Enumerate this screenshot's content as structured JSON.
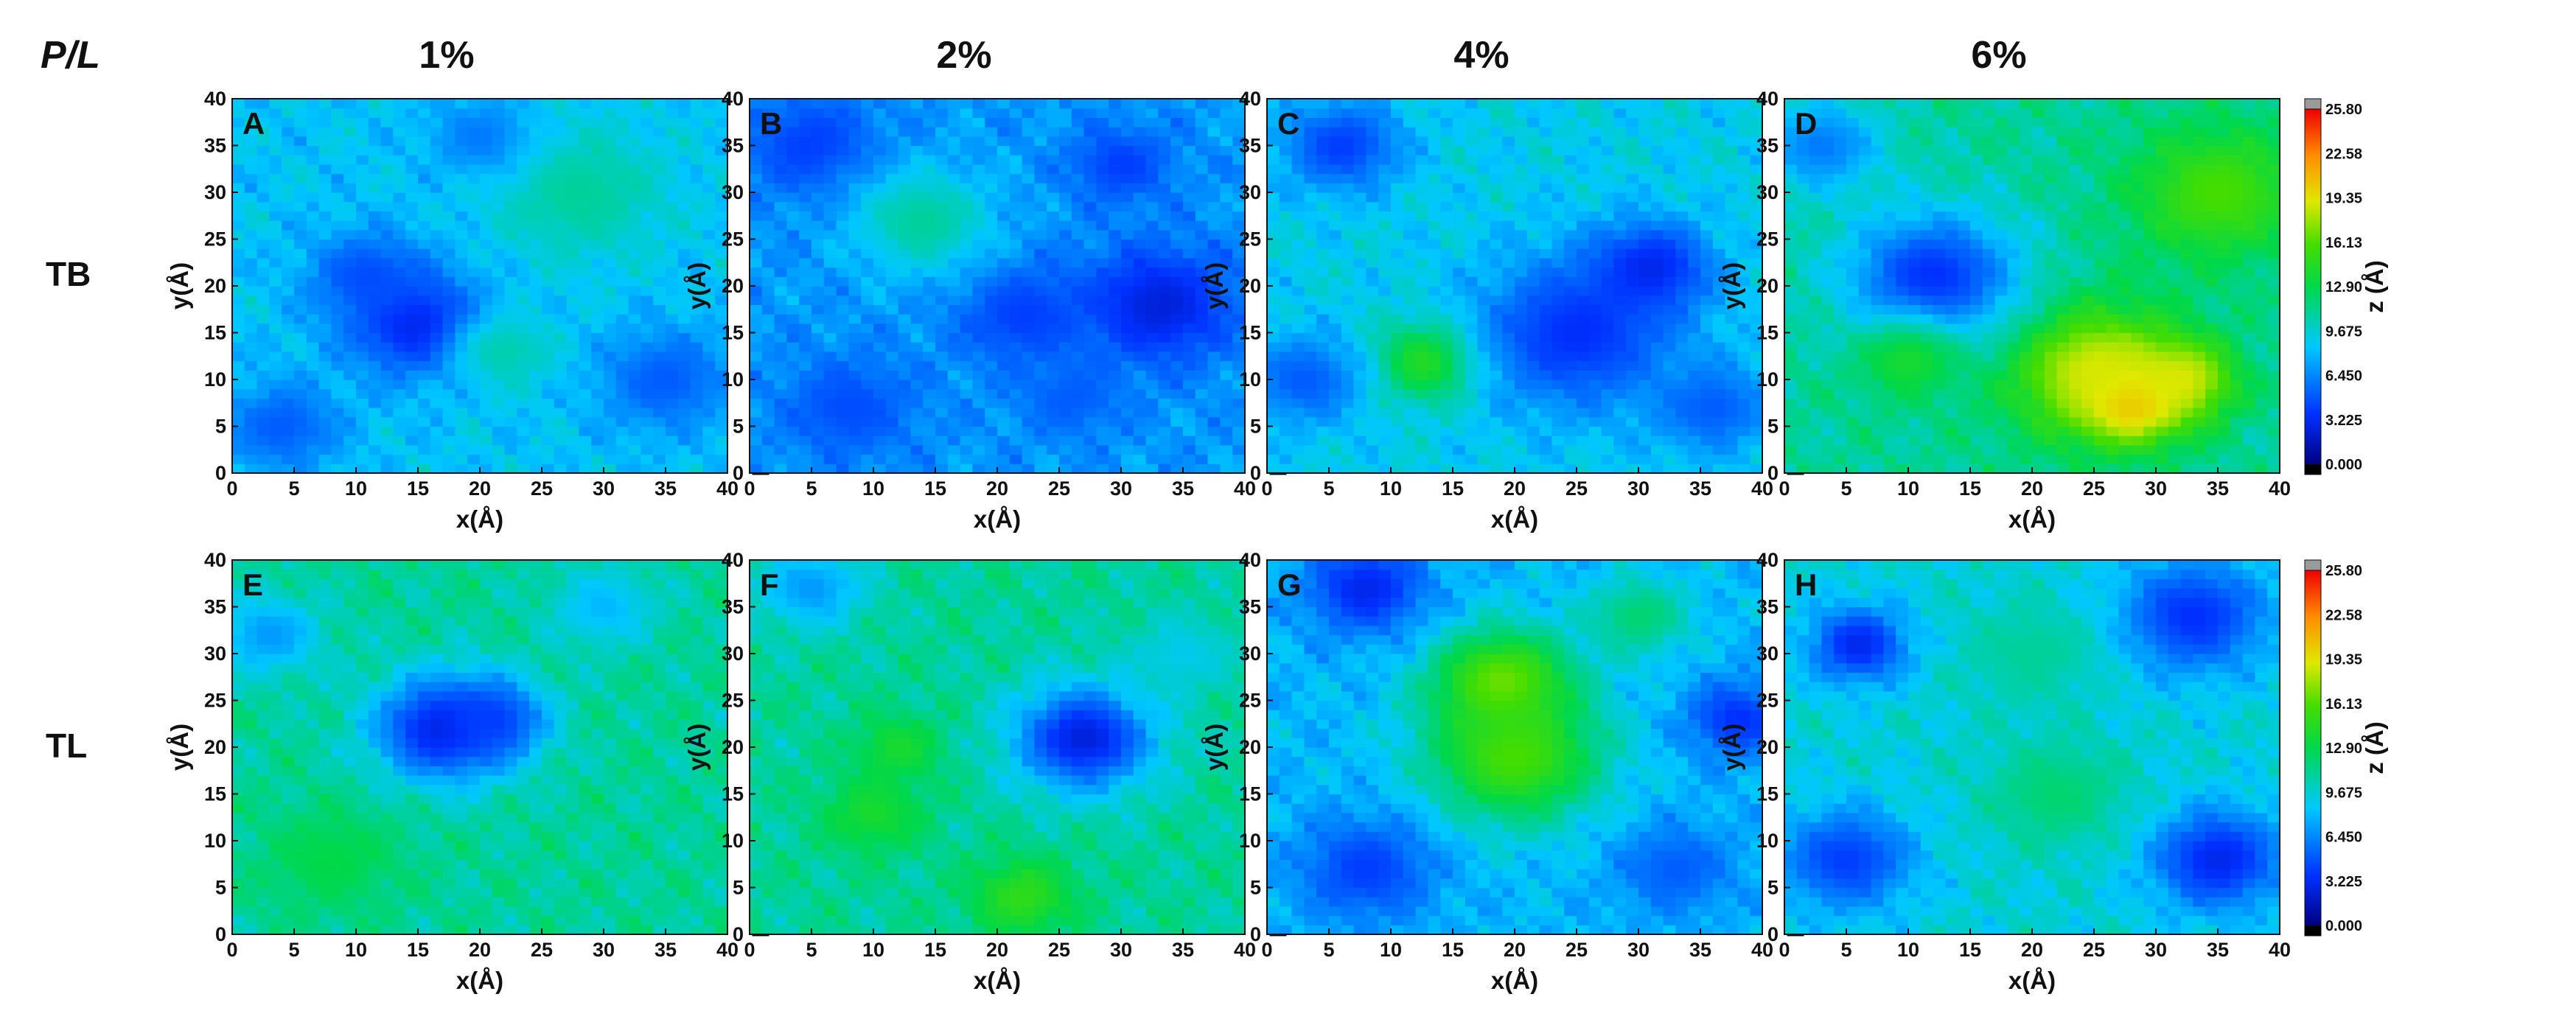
{
  "figure": {
    "row_label_header": "P/L",
    "columns": [
      "1%",
      "2%",
      "4%",
      "6%"
    ],
    "rows": [
      "TB",
      "TL"
    ]
  },
  "chart_data": [
    {
      "type": "heatmap",
      "panel": "A",
      "row": "TB",
      "column": "1%",
      "xlabel": "x(Å)",
      "ylabel": "y(Å)",
      "colorbar_label": "",
      "xlim": [
        0,
        40
      ],
      "ylim": [
        0,
        40
      ],
      "xticks": [
        0,
        5,
        10,
        15,
        20,
        25,
        30,
        35,
        40
      ],
      "yticks": [
        0,
        5,
        10,
        15,
        20,
        25,
        30,
        35,
        40
      ],
      "zlim": [
        0,
        25.8
      ],
      "colorbar_ticks": [
        "25.80",
        "22.58",
        "19.35",
        "16.13",
        "12.90",
        "9.675",
        "6.450",
        "3.225",
        "0.000"
      ],
      "baseline": 8.5,
      "features": [
        {
          "x": 15,
          "y": 16,
          "z": 2.5,
          "r": 4
        },
        {
          "x": 11,
          "y": 21,
          "z": 4.5,
          "r": 3.5
        },
        {
          "x": 35,
          "y": 10,
          "z": 5,
          "r": 4
        },
        {
          "x": 4,
          "y": 5,
          "z": 5,
          "r": 3.5
        },
        {
          "x": 28,
          "y": 30,
          "z": 11,
          "r": 5
        },
        {
          "x": 22,
          "y": 13,
          "z": 10.5,
          "r": 3
        },
        {
          "x": 20,
          "y": 36,
          "z": 6,
          "r": 3
        }
      ]
    },
    {
      "type": "heatmap",
      "panel": "B",
      "row": "TB",
      "column": "2%",
      "xlabel": "x(Å)",
      "ylabel": "y(Å)",
      "colorbar_label": "z (Å)",
      "xlim": [
        0,
        40
      ],
      "ylim": [
        0,
        40
      ],
      "xticks": [
        0,
        5,
        10,
        15,
        20,
        25,
        30,
        35,
        40
      ],
      "yticks": [
        0,
        5,
        10,
        15,
        20,
        25,
        30,
        35,
        40
      ],
      "zlim": [
        0,
        25.8
      ],
      "colorbar_ticks": [
        "25.80",
        "22.58",
        "19.35",
        "16.13",
        "12.90",
        "9.675",
        "6.450",
        "3.225",
        "0.000"
      ],
      "baseline": 7.0,
      "features": [
        {
          "x": 33,
          "y": 18,
          "z": 2.5,
          "r": 4.5
        },
        {
          "x": 22,
          "y": 17,
          "z": 4,
          "r": 4
        },
        {
          "x": 5,
          "y": 35,
          "z": 4,
          "r": 4
        },
        {
          "x": 8,
          "y": 7,
          "z": 4.5,
          "r": 4
        },
        {
          "x": 14,
          "y": 27,
          "z": 11,
          "r": 4
        },
        {
          "x": 30,
          "y": 33,
          "z": 4,
          "r": 3
        },
        {
          "x": 26,
          "y": 8,
          "z": 5,
          "r": 3
        }
      ]
    },
    {
      "type": "heatmap",
      "panel": "C",
      "row": "TB",
      "column": "4%",
      "xlabel": "x(Å)",
      "ylabel": "y(Å)",
      "colorbar_label": "z (Å)",
      "xlim": [
        0,
        40
      ],
      "ylim": [
        0,
        40
      ],
      "xticks": [
        0,
        5,
        10,
        15,
        20,
        25,
        30,
        35,
        40
      ],
      "yticks": [
        0,
        5,
        10,
        15,
        20,
        25,
        30,
        35,
        40
      ],
      "zlim": [
        0,
        25.8
      ],
      "colorbar_ticks": [
        "25.80",
        "22.58",
        "19.35",
        "16.13",
        "12.90",
        "9.675",
        "6.450",
        "3.225",
        "0.000"
      ],
      "baseline": 9.0,
      "features": [
        {
          "x": 13,
          "y": 12,
          "z": 16,
          "r": 3
        },
        {
          "x": 25,
          "y": 15,
          "z": 3.5,
          "r": 6
        },
        {
          "x": 31,
          "y": 22,
          "z": 3,
          "r": 3.5
        },
        {
          "x": 6,
          "y": 35,
          "z": 4,
          "r": 3.5
        },
        {
          "x": 3,
          "y": 10,
          "z": 5,
          "r": 3.5
        },
        {
          "x": 36,
          "y": 7,
          "z": 5,
          "r": 3.5
        }
      ]
    },
    {
      "type": "heatmap",
      "panel": "D",
      "row": "TB",
      "column": "6%",
      "xlabel": "x(Å)",
      "ylabel": "y(Å)",
      "colorbar_label": "z (Å)",
      "xlim": [
        0,
        40
      ],
      "ylim": [
        0,
        40
      ],
      "xticks": [
        0,
        5,
        10,
        15,
        20,
        25,
        30,
        35,
        40
      ],
      "yticks": [
        0,
        5,
        10,
        15,
        20,
        25,
        30,
        35,
        40
      ],
      "zlim": [
        0,
        25.8
      ],
      "colorbar_ticks": [
        "25.80",
        "22.58",
        "19.35",
        "16.13",
        "12.90",
        "9.675",
        "6.450",
        "3.225",
        "0.000"
      ],
      "baseline": 11.0,
      "features": [
        {
          "x": 28,
          "y": 8,
          "z": 23.5,
          "r": 3
        },
        {
          "x": 25,
          "y": 11,
          "z": 19,
          "r": 5
        },
        {
          "x": 32,
          "y": 10,
          "z": 19,
          "r": 3
        },
        {
          "x": 12,
          "y": 21,
          "z": 3.5,
          "r": 5
        },
        {
          "x": 35,
          "y": 30,
          "z": 16,
          "r": 5
        },
        {
          "x": 10,
          "y": 12,
          "z": 14,
          "r": 3
        },
        {
          "x": 3,
          "y": 35,
          "z": 6,
          "r": 3.5
        }
      ]
    },
    {
      "type": "heatmap",
      "panel": "E",
      "row": "TL",
      "column": "1%",
      "xlabel": "x(Å)",
      "ylabel": "y(Å)",
      "colorbar_label": "",
      "xlim": [
        0,
        40
      ],
      "ylim": [
        0,
        40
      ],
      "xticks": [
        0,
        5,
        10,
        15,
        20,
        25,
        30,
        35,
        40
      ],
      "yticks": [
        0,
        5,
        10,
        15,
        20,
        25,
        30,
        35,
        40
      ],
      "zlim": [
        0,
        25.8
      ],
      "colorbar_ticks": [
        "25.80",
        "22.58",
        "19.35",
        "16.13",
        "12.90",
        "9.675",
        "6.450",
        "3.225",
        "0.000"
      ],
      "baseline": 11.0,
      "features": [
        {
          "x": 17,
          "y": 22,
          "z": 2.5,
          "r": 4
        },
        {
          "x": 21,
          "y": 23,
          "z": 4,
          "r": 3
        },
        {
          "x": 3,
          "y": 32,
          "z": 7,
          "r": 3
        },
        {
          "x": 30,
          "y": 35,
          "z": 8,
          "r": 3
        },
        {
          "x": 8,
          "y": 8,
          "z": 13,
          "r": 4
        }
      ]
    },
    {
      "type": "heatmap",
      "panel": "F",
      "row": "TL",
      "column": "2%",
      "xlabel": "x(Å)",
      "ylabel": "y(Å)",
      "colorbar_label": "z (Å)",
      "xlim": [
        0,
        40
      ],
      "ylim": [
        0,
        40
      ],
      "xticks": [
        0,
        5,
        10,
        15,
        20,
        25,
        30,
        35,
        40
      ],
      "yticks": [
        0,
        5,
        10,
        15,
        20,
        25,
        30,
        35,
        40
      ],
      "zlim": [
        0,
        25.8
      ],
      "colorbar_ticks": [
        "25.80",
        "22.58",
        "19.35",
        "16.13",
        "12.90",
        "9.675",
        "6.450",
        "3.225",
        "0.000"
      ],
      "baseline": 11.0,
      "features": [
        {
          "x": 27,
          "y": 21,
          "z": 2.5,
          "r": 4
        },
        {
          "x": 5,
          "y": 37,
          "z": 7,
          "r": 3
        },
        {
          "x": 22,
          "y": 4,
          "z": 15,
          "r": 3
        },
        {
          "x": 10,
          "y": 13,
          "z": 14,
          "r": 3
        },
        {
          "x": 12,
          "y": 20,
          "z": 14,
          "r": 2.5
        },
        {
          "x": 35,
          "y": 30,
          "z": 9,
          "r": 3
        }
      ]
    },
    {
      "type": "heatmap",
      "panel": "G",
      "row": "TL",
      "column": "4%",
      "xlabel": "x(Å)",
      "ylabel": "y(Å)",
      "colorbar_label": "z (Å)",
      "xlim": [
        0,
        40
      ],
      "ylim": [
        0,
        40
      ],
      "xticks": [
        0,
        5,
        10,
        15,
        20,
        25,
        30,
        35,
        40
      ],
      "yticks": [
        0,
        5,
        10,
        15,
        20,
        25,
        30,
        35,
        40
      ],
      "zlim": [
        0,
        25.8
      ],
      "colorbar_ticks": [
        "25.80",
        "22.58",
        "19.35",
        "16.13",
        "12.90",
        "9.675",
        "6.450",
        "3.225",
        "0.000"
      ],
      "baseline": 8.0,
      "features": [
        {
          "x": 19,
          "y": 27,
          "z": 17,
          "r": 4
        },
        {
          "x": 20,
          "y": 19,
          "z": 16,
          "r": 5
        },
        {
          "x": 8,
          "y": 37,
          "z": 3,
          "r": 3.5
        },
        {
          "x": 38,
          "y": 23,
          "z": 3.5,
          "r": 3
        },
        {
          "x": 8,
          "y": 7,
          "z": 4,
          "r": 4
        },
        {
          "x": 33,
          "y": 7,
          "z": 5,
          "r": 3.5
        },
        {
          "x": 30,
          "y": 34,
          "z": 12,
          "r": 3
        }
      ]
    },
    {
      "type": "heatmap",
      "panel": "H",
      "row": "TL",
      "column": "6%",
      "xlabel": "x(Å)",
      "ylabel": "y(Å)",
      "colorbar_label": "z (Å)",
      "xlim": [
        0,
        40
      ],
      "ylim": [
        0,
        40
      ],
      "xticks": [
        0,
        5,
        10,
        15,
        20,
        25,
        30,
        35,
        40
      ],
      "yticks": [
        0,
        5,
        10,
        15,
        20,
        25,
        30,
        35,
        40
      ],
      "zlim": [
        0,
        25.8
      ],
      "colorbar_ticks": [
        "25.80",
        "22.58",
        "19.35",
        "16.13",
        "12.90",
        "9.675",
        "6.450",
        "3.225",
        "0.000"
      ],
      "baseline": 9.5,
      "features": [
        {
          "x": 6,
          "y": 31,
          "z": 3,
          "r": 3
        },
        {
          "x": 33,
          "y": 34,
          "z": 3.5,
          "r": 4.5
        },
        {
          "x": 35,
          "y": 8,
          "z": 3,
          "r": 4
        },
        {
          "x": 5,
          "y": 8,
          "z": 4,
          "r": 4
        },
        {
          "x": 22,
          "y": 15,
          "z": 12,
          "r": 4
        },
        {
          "x": 20,
          "y": 30,
          "z": 11,
          "r": 4
        }
      ]
    }
  ]
}
